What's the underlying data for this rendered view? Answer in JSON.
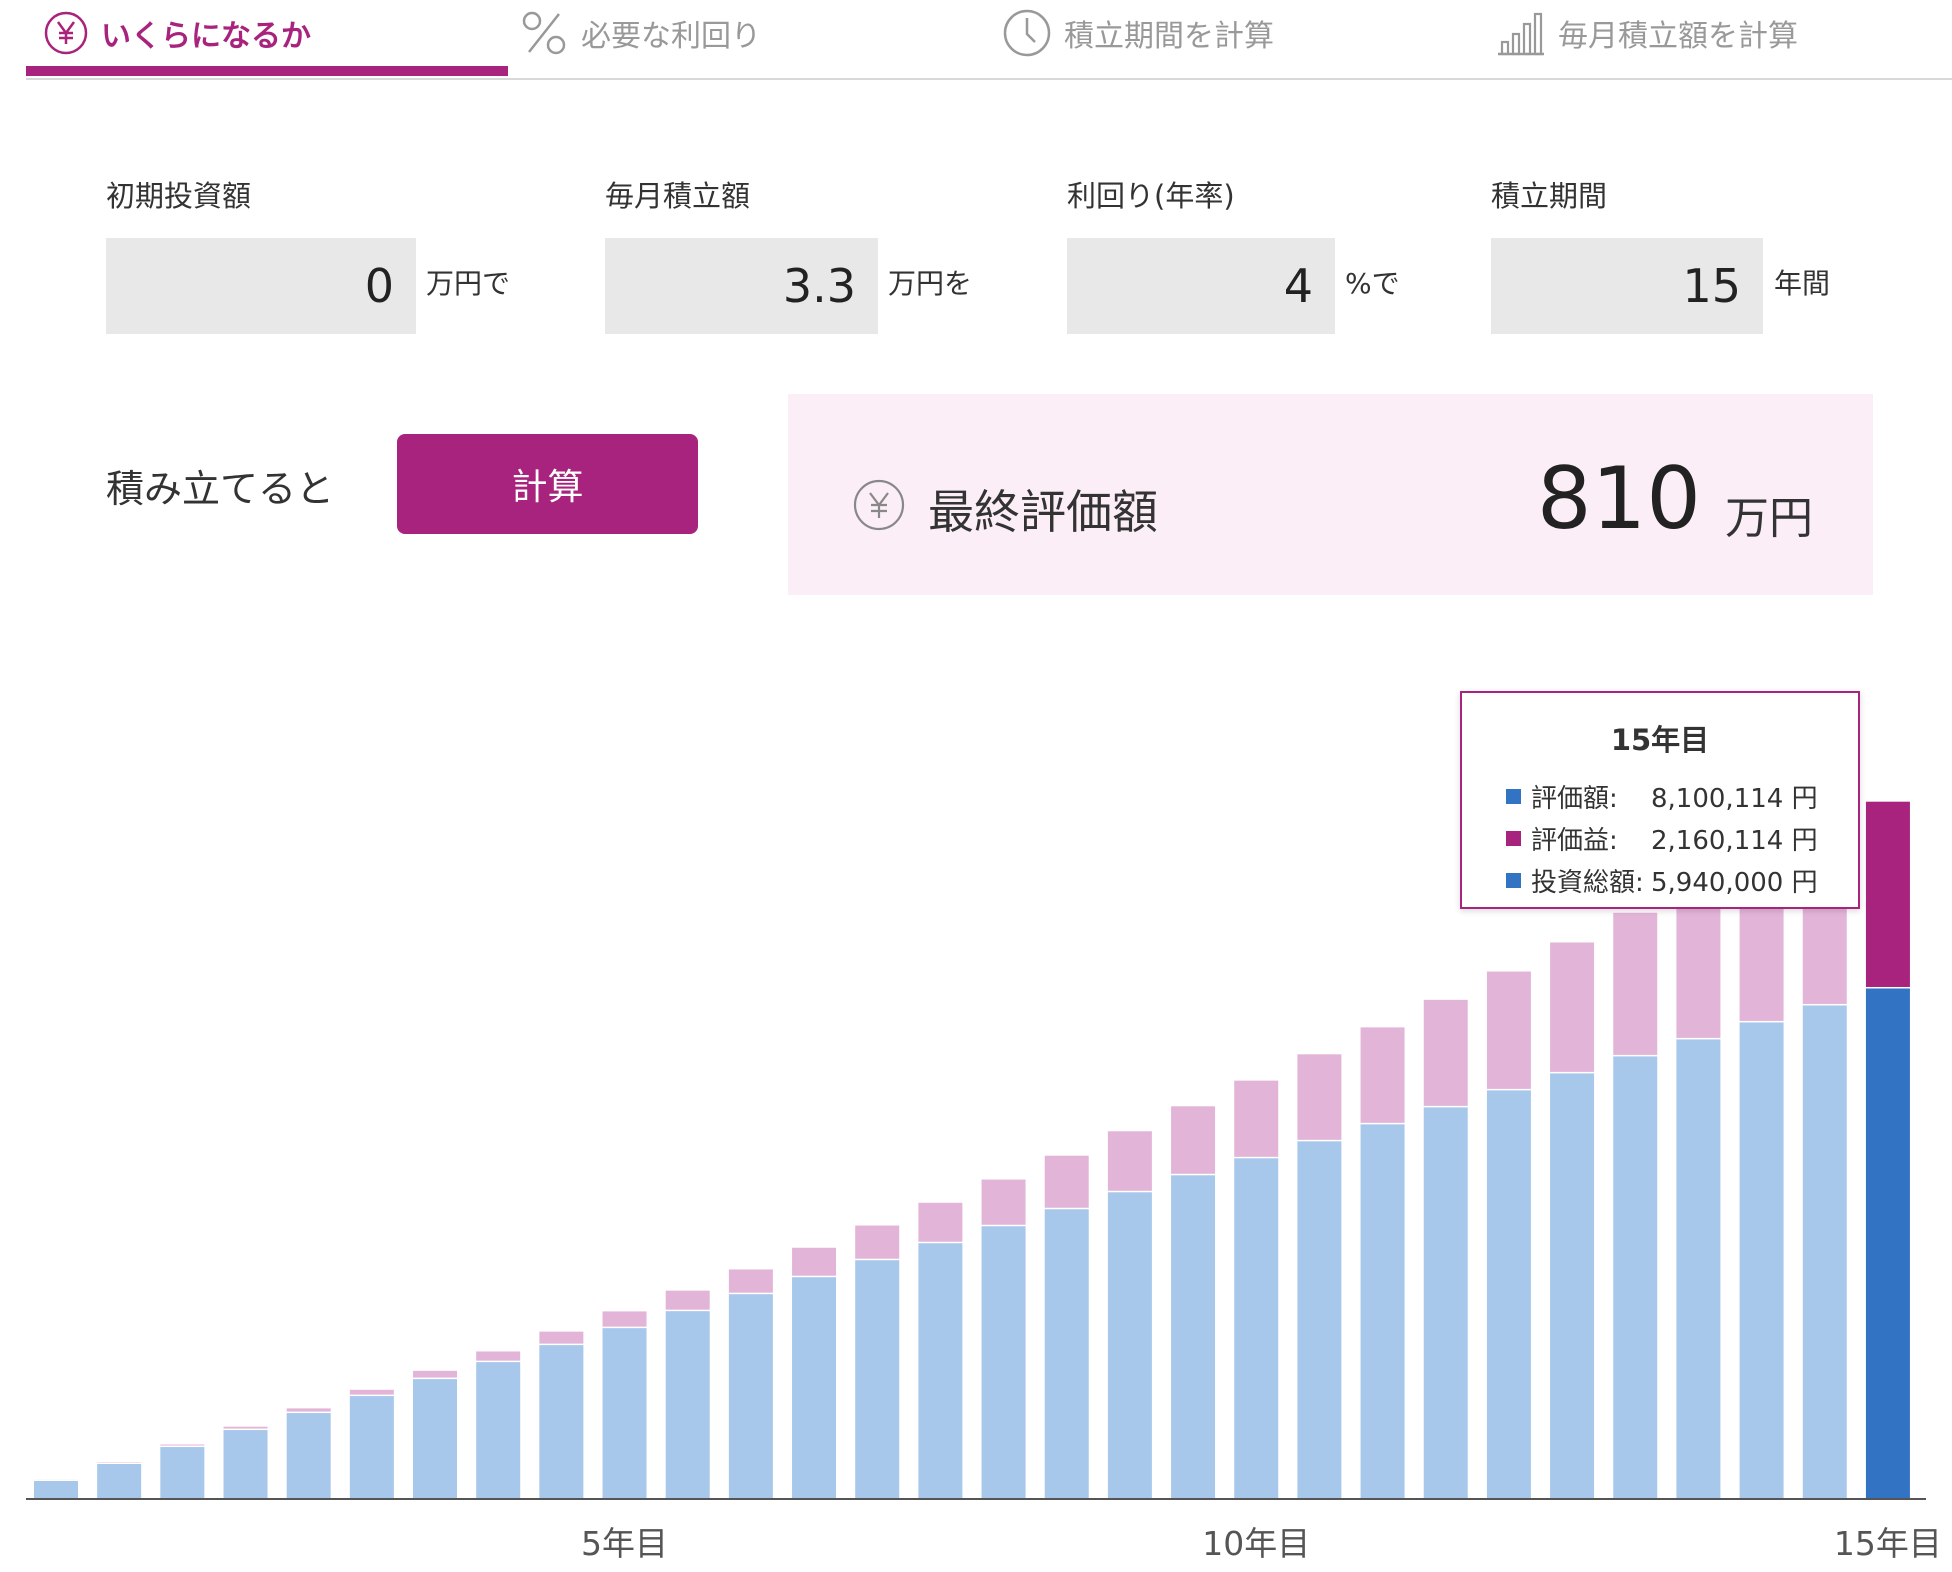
{
  "tabs": [
    {
      "label": "いくらになるか",
      "icon": "yen-circle-icon",
      "active": true
    },
    {
      "label": "必要な利回り",
      "icon": "percent-icon",
      "active": false
    },
    {
      "label": "積立期間を計算",
      "icon": "clock-icon",
      "active": false
    },
    {
      "label": "毎月積立額を計算",
      "icon": "bar-chart-icon",
      "active": false
    }
  ],
  "inputs": {
    "initial": {
      "label": "初期投資額",
      "value": "0",
      "unit": "万円で"
    },
    "monthly": {
      "label": "毎月積立額",
      "value": "3.3",
      "unit": "万円を"
    },
    "rate": {
      "label": "利回り(年率)",
      "value": "4",
      "unit": "%で"
    },
    "period": {
      "label": "積立期間",
      "value": "15",
      "unit": "年間"
    }
  },
  "calc": {
    "prefix": "積み立てると",
    "button_label": "計算"
  },
  "result": {
    "label": "最終評価額",
    "value": "810",
    "unit": "万円"
  },
  "tooltip": {
    "title": "15年目",
    "rows": [
      {
        "label": "評価額:",
        "value": "8,100,114 円",
        "color": "#3273c4"
      },
      {
        "label": "評価益:",
        "value": "2,160,114 円",
        "color": "#a8237d"
      },
      {
        "label": "投資総額:",
        "value": "5,940,000 円",
        "color": "#3273c4"
      }
    ]
  },
  "colors": {
    "accent": "#a8237d",
    "principal": "#a7c7eb",
    "gain": "#e2b5d8",
    "principal_highlight": "#3273c4",
    "gain_highlight": "#a8237d",
    "result_bg": "#fbeef7",
    "input_bg": "#e8e8e8"
  },
  "chart_data": {
    "type": "bar",
    "stacked": true,
    "x_unit": "半年",
    "x_labels": [
      {
        "index": 10,
        "label": "5年目"
      },
      {
        "index": 20,
        "label": "10年目"
      },
      {
        "index": 30,
        "label": "15年目"
      }
    ],
    "highlighted_index": 30,
    "series": [
      {
        "name": "投資総額",
        "values": [
          198000,
          396000,
          594000,
          792000,
          990000,
          1188000,
          1386000,
          1584000,
          1782000,
          1980000,
          2178000,
          2376000,
          2574000,
          2772000,
          2970000,
          3168000,
          3366000,
          3564000,
          3762000,
          3960000,
          4158000,
          4356000,
          4554000,
          4752000,
          4950000,
          5148000,
          5346000,
          5544000,
          5742000,
          5940000
        ]
      },
      {
        "name": "評価益",
        "values": [
          1000,
          5000,
          12000,
          22000,
          37000,
          56000,
          79000,
          107000,
          140000,
          178000,
          222000,
          271000,
          326000,
          387000,
          454000,
          527000,
          607000,
          694000,
          787000,
          888000,
          997000,
          1113000,
          1236000,
          1368000,
          1509000,
          1657000,
          1816000,
          1982000,
          2160000,
          2160114
        ]
      }
    ],
    "ylim": [
      0,
      9000000
    ]
  }
}
